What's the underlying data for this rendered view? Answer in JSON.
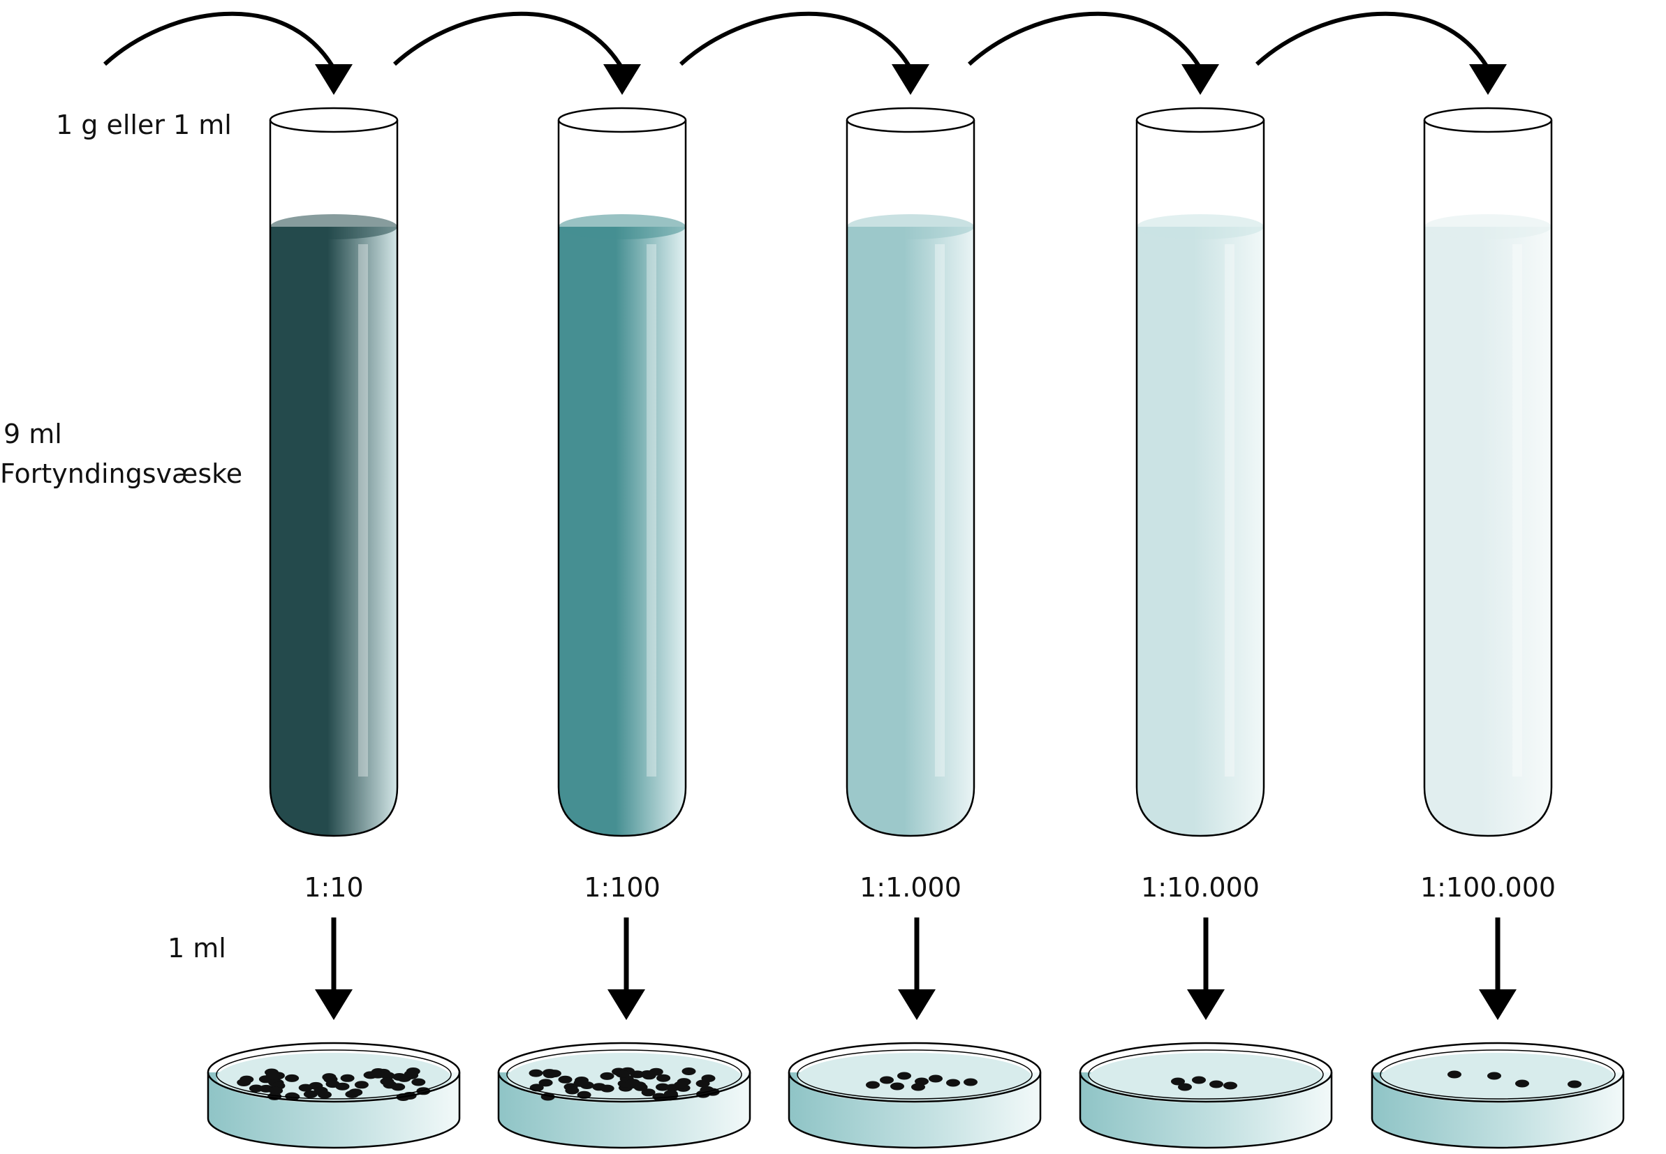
{
  "labels": {
    "sample": "1 g eller 1 ml",
    "diluent_volume": "9 ml",
    "diluent_name": "Fortyndingsvæske",
    "plating_volume": "1 ml"
  },
  "steps": [
    {
      "ratio": "1:10",
      "liquid_dark": "#244a4c",
      "liquid_light": "#d4e7e8",
      "colonies": "many"
    },
    {
      "ratio": "1:100",
      "liquid_dark": "#468f92",
      "liquid_light": "#e2f1f2",
      "colonies": "many"
    },
    {
      "ratio": "1:1.000",
      "liquid_dark": "#9cc8ca",
      "liquid_light": "#eaf4f5",
      "colonies": "some"
    },
    {
      "ratio": "1:10.000",
      "liquid_dark": "#cbe3e4",
      "liquid_light": "#f1f8f8",
      "colonies": "few"
    },
    {
      "ratio": "1:100.000",
      "liquid_dark": "#e1eeef",
      "liquid_light": "#f6fafa",
      "colonies": "four"
    }
  ],
  "colors": {
    "outline": "#000000",
    "agar": "#a9d3d4",
    "colony": "#111111"
  }
}
